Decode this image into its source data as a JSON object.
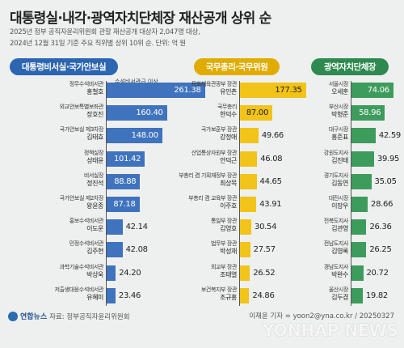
{
  "title": "대통령실·내각·광역자치단체장 재산공개 상위 순",
  "subtitle_1": "2025년 정부 공직자윤리위원회 관할 재산공개 대상자 2,047명 대상,",
  "subtitle_2": "2024년 12월 31일 기준 주요 직위별 상위 10위 순. 단위: 억 원",
  "chart_data": [
    {
      "type": "bar",
      "title": "대통령비서실·국가안보실",
      "annotation": "수석비서관급 이상",
      "color": "#3f73bd",
      "xlim": [
        0,
        280
      ],
      "categories": [
        {
          "position": "정무수석비서관",
          "name": "홍철호"
        },
        {
          "position": "외교안보특별보좌관",
          "name": "장호진"
        },
        {
          "position": "국가안보실 제3차장",
          "name": "김태효"
        },
        {
          "position": "정책실장",
          "name": "성태윤"
        },
        {
          "position": "비서실장",
          "name": "정진석"
        },
        {
          "position": "국가안보실 제2차장",
          "name": "왕윤종"
        },
        {
          "position": "홍보수석비서관",
          "name": "이도운"
        },
        {
          "position": "민정수석비서관",
          "name": "김주현"
        },
        {
          "position": "과학기술수석비서관",
          "name": "박상욱"
        },
        {
          "position": "저출생대응수석비서관",
          "name": "유혜미"
        }
      ],
      "values": [
        261.38,
        160.4,
        148.0,
        101.42,
        88.88,
        87.18,
        42.14,
        42.08,
        24.2,
        23.46
      ],
      "value_labels": [
        "261.38",
        "160.40",
        "148.00",
        "101.42",
        "88.88",
        "87.18",
        "42.14",
        "42.08",
        "24.20",
        "23.46"
      ]
    },
    {
      "type": "bar",
      "title": "국무총리·국무위원",
      "color": "#f2c318",
      "xlim": [
        0,
        200
      ],
      "categories": [
        {
          "position": "문화체육관광부 장관",
          "name": "유인촌"
        },
        {
          "position": "국무총리",
          "name": "한덕수"
        },
        {
          "position": "국가보훈부 장관",
          "name": "강정애"
        },
        {
          "position": "산업통상자원부 장관",
          "name": "안덕근"
        },
        {
          "position": "부총리 겸 기획재정부 장관",
          "name": "최상목"
        },
        {
          "position": "부총리 겸 교육부 장관",
          "name": "이주호"
        },
        {
          "position": "통일부 장관",
          "name": "김영호"
        },
        {
          "position": "법무부 장관",
          "name": "박성재"
        },
        {
          "position": "외교부 장관",
          "name": "조태열"
        },
        {
          "position": "보건복지부 장관",
          "name": "조규홍"
        }
      ],
      "values": [
        177.35,
        87.0,
        49.66,
        46.08,
        44.65,
        43.91,
        30.54,
        27.57,
        26.52,
        24.86
      ],
      "value_labels": [
        "177.35",
        "87.00",
        "49.66",
        "46.08",
        "44.65",
        "43.91",
        "30.54",
        "27.57",
        "26.52",
        "24.86"
      ]
    },
    {
      "type": "bar",
      "title": "광역자치단체장",
      "color": "#3d9c5b",
      "xlim": [
        0,
        90
      ],
      "categories": [
        {
          "position": "서울시장",
          "name": "오세훈"
        },
        {
          "position": "부산시장",
          "name": "박형준"
        },
        {
          "position": "대구시장",
          "name": "홍준표"
        },
        {
          "position": "강원도지사",
          "name": "김진태"
        },
        {
          "position": "경기도지사",
          "name": "김동연"
        },
        {
          "position": "대전시장",
          "name": "이장우"
        },
        {
          "position": "전북도지사",
          "name": "김관영"
        },
        {
          "position": "전남도지사",
          "name": "김영록"
        },
        {
          "position": "경남도지사",
          "name": "박완수"
        },
        {
          "position": "울산시장",
          "name": "김두겸"
        }
      ],
      "values": [
        74.06,
        58.96,
        42.59,
        39.95,
        35.05,
        28.66,
        26.36,
        26.25,
        20.72,
        19.82
      ],
      "value_labels": [
        "74.06",
        "58.96",
        "42.59",
        "39.95",
        "35.05",
        "28.66",
        "26.36",
        "26.25",
        "20.72",
        "19.82"
      ]
    }
  ],
  "footer": {
    "brand": "연합뉴스",
    "source": "자료: 정부공직자윤리위원회",
    "credit": "이재윤 기자 = yoon2@yna.co.kr / 20250327",
    "watermark": "YONHAP NEWS"
  },
  "colors": {
    "background": "#eef0f0"
  }
}
